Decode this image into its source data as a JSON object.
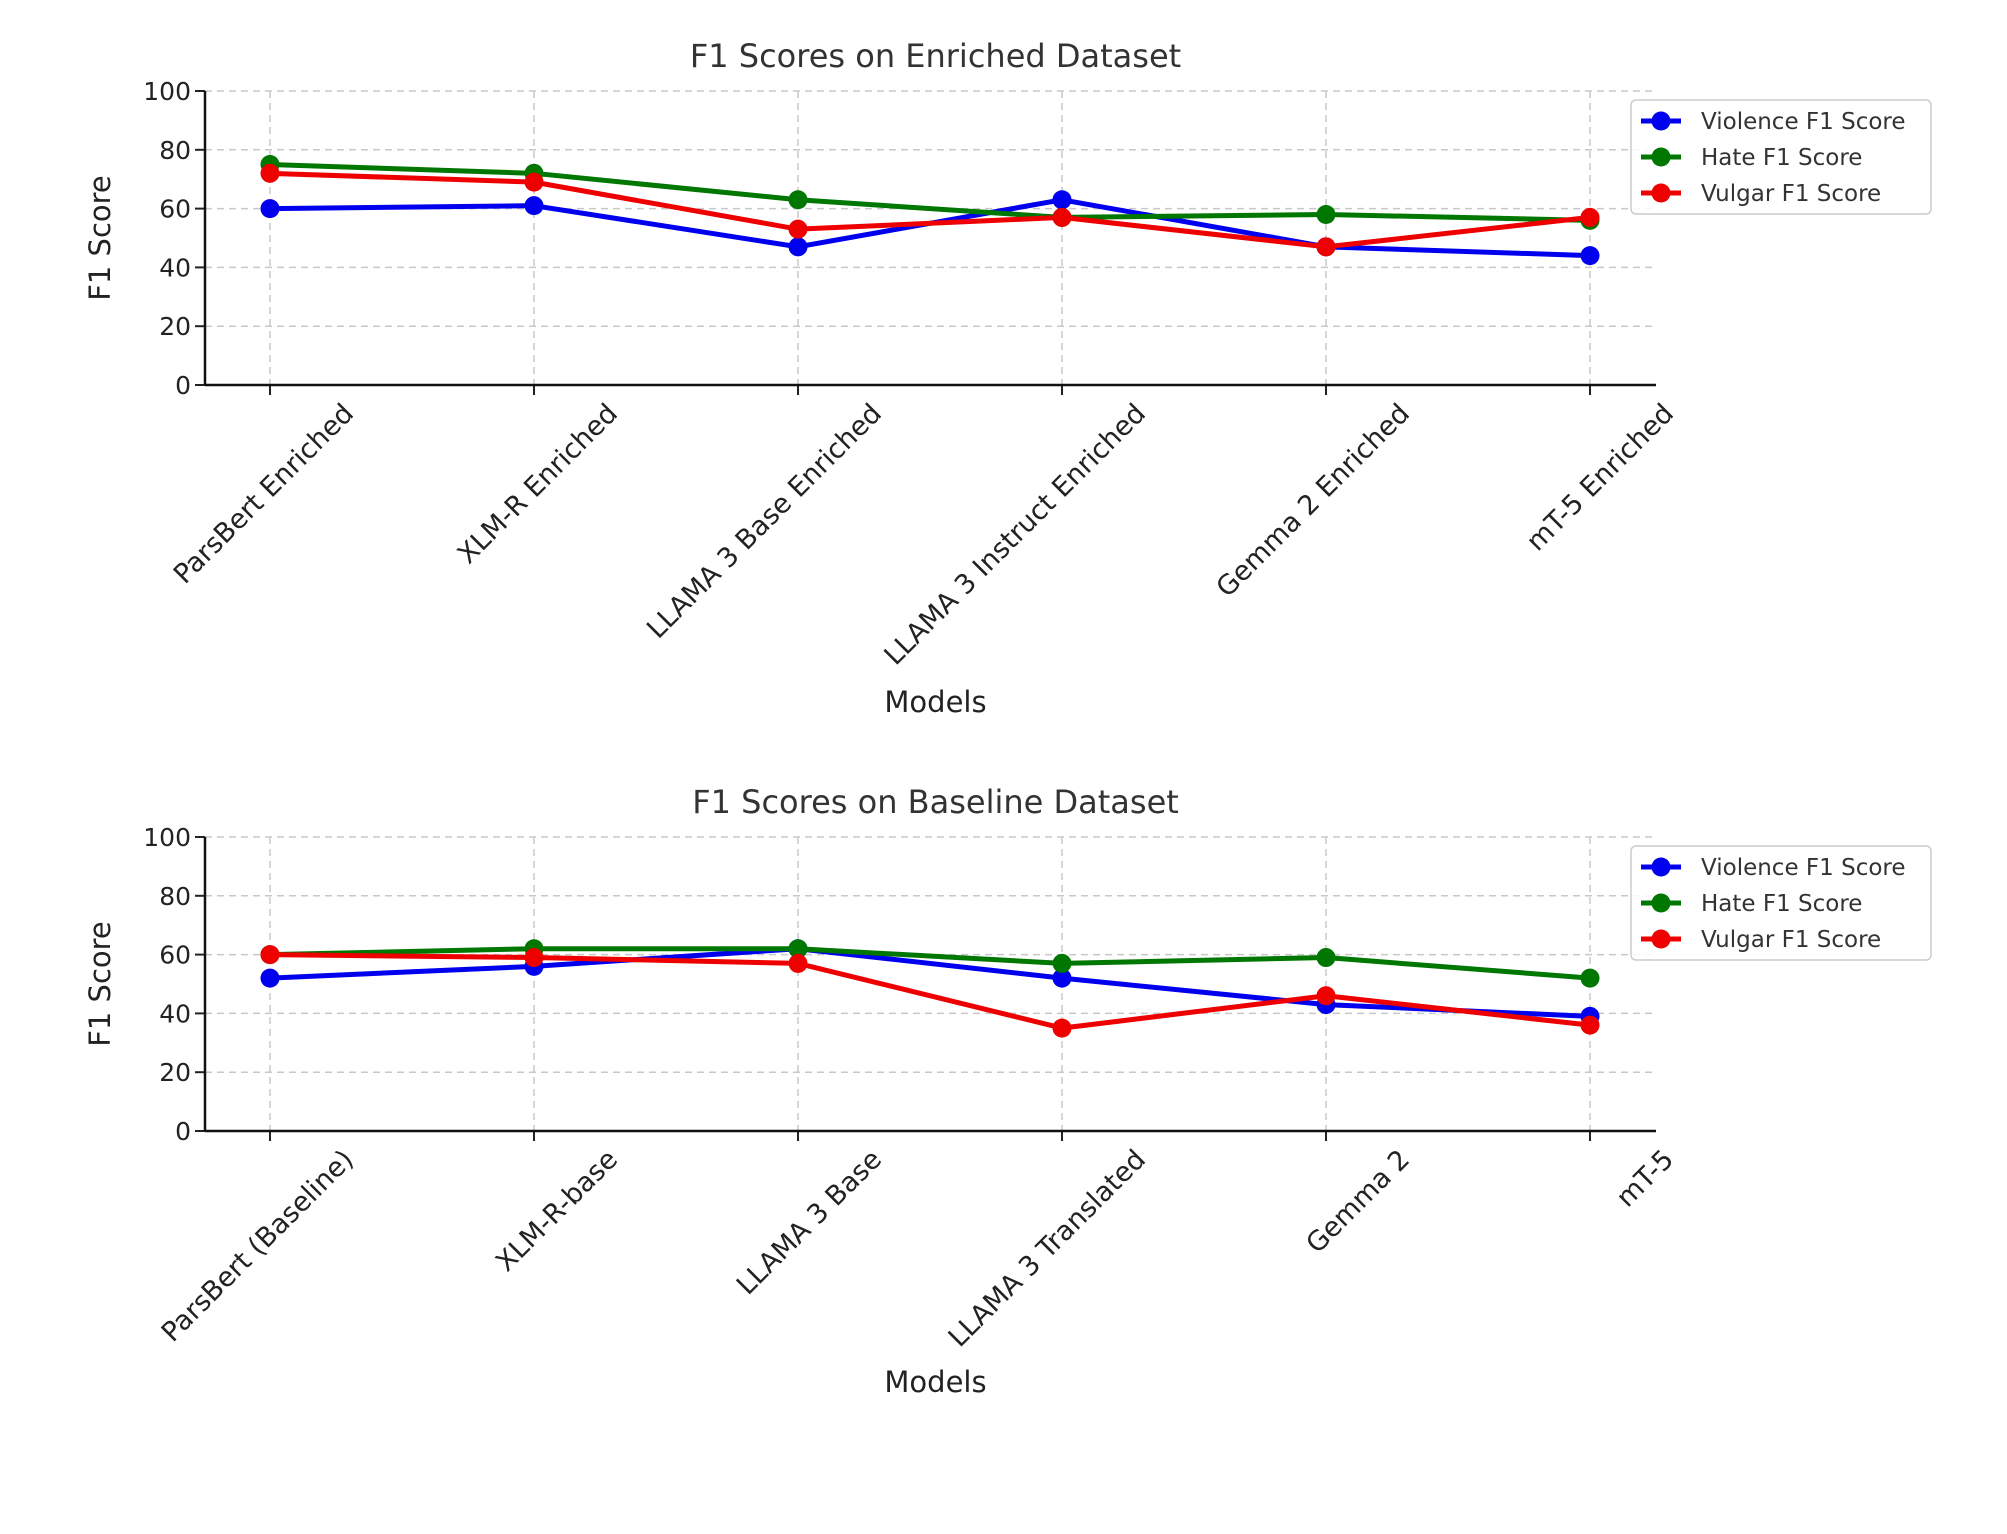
{
  "chart_data": [
    {
      "type": "line",
      "title": "F1 Scores on Enriched Dataset",
      "xlabel": "Models",
      "ylabel": "F1 Score",
      "ylim": [
        0,
        100
      ],
      "yticks": [
        0,
        20,
        40,
        60,
        80,
        100
      ],
      "grid": true,
      "legend_position": "top-right",
      "categories": [
        "ParsBert Enriched",
        "XLM-R Enriched",
        "LLAMA 3 Base Enriched",
        "LLAMA 3 Instruct Enriched",
        "Gemma 2 Enriched",
        "mT-5 Enriched"
      ],
      "series": [
        {
          "name": "Violence F1 Score",
          "color": "#0000ee",
          "values": [
            60,
            61,
            47,
            63,
            47,
            44
          ]
        },
        {
          "name": "Hate F1 Score",
          "color": "#007700",
          "values": [
            75,
            72,
            63,
            57,
            58,
            56
          ]
        },
        {
          "name": "Vulgar F1 Score",
          "color": "#ee0000",
          "values": [
            72,
            69,
            53,
            57,
            47,
            57
          ]
        }
      ]
    },
    {
      "type": "line",
      "title": "F1 Scores on Baseline Dataset",
      "xlabel": "Models",
      "ylabel": "F1 Score",
      "ylim": [
        0,
        100
      ],
      "yticks": [
        0,
        20,
        40,
        60,
        80,
        100
      ],
      "grid": true,
      "legend_position": "top-right",
      "categories": [
        "ParsBert (Baseline)",
        "XLM-R-base",
        "LLAMA 3 Base",
        "LLAMA 3 Translated",
        "Gemma 2",
        "mT-5"
      ],
      "series": [
        {
          "name": "Violence F1 Score",
          "color": "#0000ee",
          "values": [
            52,
            56,
            62,
            52,
            43,
            39
          ]
        },
        {
          "name": "Hate F1 Score",
          "color": "#007700",
          "values": [
            60,
            62,
            62,
            57,
            59,
            52
          ]
        },
        {
          "name": "Vulgar F1 Score",
          "color": "#ee0000",
          "values": [
            60,
            59,
            57,
            35,
            46,
            36
          ]
        }
      ]
    }
  ]
}
